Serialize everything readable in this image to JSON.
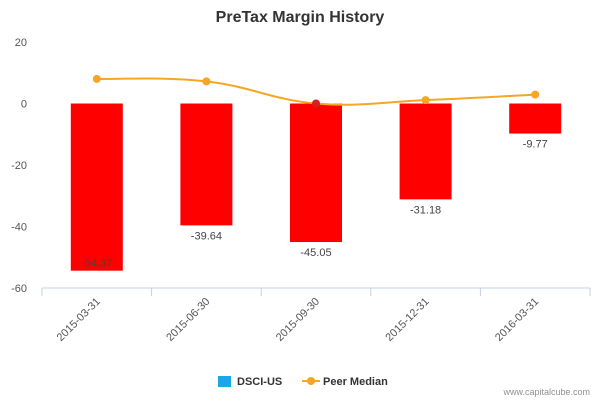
{
  "chart_data": {
    "type": "bar",
    "title": "PreTax Margin History",
    "categories": [
      "2015-03-31",
      "2015-06-30",
      "2015-09-30",
      "2015-12-31",
      "2016-03-31"
    ],
    "series": [
      {
        "name": "DSCI-US",
        "type": "bar",
        "values": [
          -54.37,
          -39.64,
          -45.05,
          -31.18,
          -9.77
        ],
        "data_labels": [
          "-54.37",
          "-39.64",
          "-45.05",
          "-31.18",
          "-9.77"
        ],
        "color": "#ff0000",
        "legend_color": "#1aa6e8"
      },
      {
        "name": "Peer Median",
        "type": "line",
        "values": [
          8,
          7.2,
          0,
          1.1,
          2.9
        ],
        "color": "#f5a623",
        "highlight_color": "#d62020"
      }
    ],
    "xlabel": "",
    "ylabel": "",
    "ylim": [
      -60,
      20
    ],
    "yticks": [
      "20",
      "0",
      "-20",
      "-40",
      "-60"
    ],
    "grid": false,
    "legend_position": "bottom"
  },
  "credit": "www.capitalcube.com"
}
